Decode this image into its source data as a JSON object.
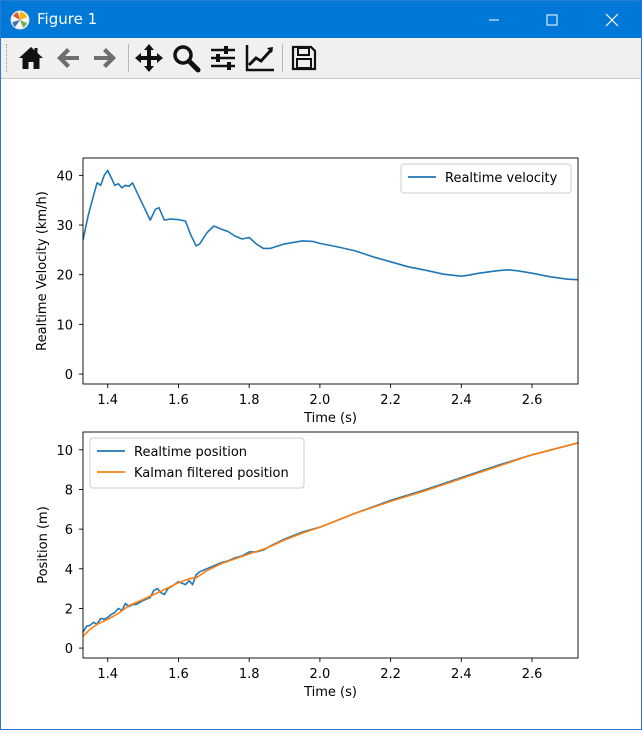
{
  "window": {
    "title": "Figure 1"
  },
  "toolbar": {
    "icons": [
      "home-icon",
      "back-arrow-icon",
      "forward-arrow-icon",
      "pan-icon",
      "zoom-icon",
      "configure-subplots-icon",
      "edit-axis-icon",
      "save-icon"
    ]
  },
  "colors": {
    "titlebar": "#0078d7",
    "series_blue": "#1f77b4",
    "series_orange": "#ff7f0e"
  },
  "chart_data": [
    {
      "type": "line",
      "xlabel": "Time (s)",
      "ylabel": "Realtime Velocity (km/h)",
      "xlim": [
        1.33,
        2.73
      ],
      "ylim": [
        -2,
        43.5
      ],
      "xticks": [
        "1.4",
        "1.6",
        "1.8",
        "2.0",
        "2.2",
        "2.4",
        "2.6"
      ],
      "yticks": [
        "0",
        "10",
        "20",
        "30",
        "40"
      ],
      "legend_placement": "top-right",
      "series": [
        {
          "name": "Realtime velocity",
          "x": [
            1.33,
            1.345,
            1.36,
            1.37,
            1.38,
            1.39,
            1.4,
            1.41,
            1.42,
            1.43,
            1.44,
            1.45,
            1.46,
            1.47,
            1.48,
            1.5,
            1.52,
            1.535,
            1.545,
            1.56,
            1.575,
            1.6,
            1.62,
            1.635,
            1.65,
            1.66,
            1.68,
            1.7,
            1.72,
            1.74,
            1.76,
            1.78,
            1.8,
            1.82,
            1.84,
            1.86,
            1.9,
            1.95,
            1.98,
            2.0,
            2.05,
            2.1,
            2.15,
            2.2,
            2.25,
            2.3,
            2.35,
            2.4,
            2.42,
            2.45,
            2.5,
            2.53,
            2.56,
            2.6,
            2.65,
            2.7,
            2.73
          ],
          "y": [
            27,
            32,
            36,
            38.5,
            38,
            40,
            41,
            39.5,
            38,
            38.3,
            37.5,
            38,
            37.8,
            38.5,
            37,
            34,
            31,
            33.2,
            33.5,
            31,
            31.2,
            31.1,
            30.8,
            28,
            25.8,
            26.2,
            28.4,
            29.8,
            29.2,
            28.7,
            27.8,
            27.2,
            27.5,
            26.2,
            25.3,
            25.3,
            26.2,
            26.8,
            26.7,
            26.3,
            25.6,
            24.8,
            23.6,
            22.6,
            21.6,
            20.9,
            20.1,
            19.7,
            19.9,
            20.3,
            20.8,
            21,
            20.8,
            20.3,
            19.6,
            19.1,
            19
          ]
        }
      ]
    },
    {
      "type": "line",
      "xlabel": "Time (s)",
      "ylabel": "Position (m)",
      "xlim": [
        1.33,
        2.73
      ],
      "ylim": [
        -0.5,
        10.9
      ],
      "xticks": [
        "1.4",
        "1.6",
        "1.8",
        "2.0",
        "2.2",
        "2.4",
        "2.6"
      ],
      "yticks": [
        "0",
        "2",
        "4",
        "6",
        "8",
        "10"
      ],
      "legend_placement": "top-left",
      "series": [
        {
          "name": "Realtime position",
          "x": [
            1.33,
            1.34,
            1.35,
            1.36,
            1.37,
            1.38,
            1.39,
            1.4,
            1.41,
            1.42,
            1.43,
            1.44,
            1.45,
            1.46,
            1.47,
            1.48,
            1.5,
            1.52,
            1.53,
            1.54,
            1.55,
            1.56,
            1.57,
            1.58,
            1.6,
            1.62,
            1.63,
            1.64,
            1.65,
            1.66,
            1.68,
            1.7,
            1.72,
            1.74,
            1.76,
            1.78,
            1.8,
            1.82,
            1.84,
            1.86,
            1.9,
            1.95,
            2.0,
            2.1,
            2.2,
            2.3,
            2.4,
            2.5,
            2.6,
            2.73
          ],
          "y": [
            0.8,
            1.1,
            1.15,
            1.3,
            1.2,
            1.5,
            1.45,
            1.55,
            1.7,
            1.8,
            2.0,
            1.9,
            2.25,
            2.1,
            2.2,
            2.2,
            2.4,
            2.55,
            2.9,
            3.0,
            2.8,
            2.7,
            3.0,
            3.1,
            3.35,
            3.2,
            3.4,
            3.2,
            3.7,
            3.85,
            4.0,
            4.15,
            4.3,
            4.4,
            4.55,
            4.65,
            4.85,
            4.85,
            4.95,
            5.15,
            5.5,
            5.85,
            6.1,
            6.8,
            7.45,
            8.0,
            8.6,
            9.2,
            9.75,
            10.35
          ]
        },
        {
          "name": "Kalman filtered position",
          "x": [
            1.33,
            1.35,
            1.37,
            1.4,
            1.43,
            1.46,
            1.5,
            1.53,
            1.56,
            1.6,
            1.63,
            1.65,
            1.68,
            1.72,
            1.76,
            1.8,
            1.85,
            1.9,
            1.95,
            2.0,
            2.1,
            2.2,
            2.3,
            2.4,
            2.5,
            2.6,
            2.73
          ],
          "y": [
            0.6,
            0.95,
            1.2,
            1.45,
            1.75,
            2.15,
            2.45,
            2.7,
            2.95,
            3.3,
            3.5,
            3.55,
            3.9,
            4.25,
            4.5,
            4.75,
            5.05,
            5.45,
            5.8,
            6.1,
            6.8,
            7.4,
            7.95,
            8.55,
            9.15,
            9.75,
            10.35
          ]
        }
      ]
    }
  ]
}
